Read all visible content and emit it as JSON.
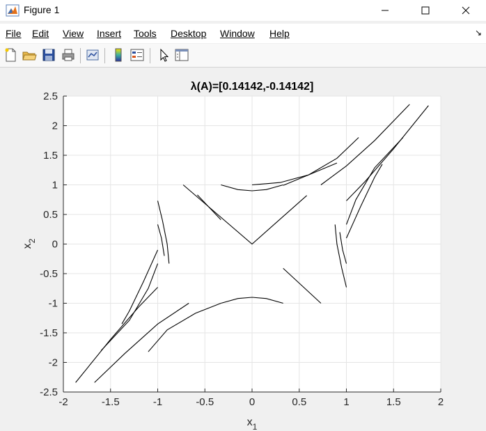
{
  "window": {
    "title": "Figure 1"
  },
  "menu": {
    "items": [
      {
        "label": "File"
      },
      {
        "label": "Edit"
      },
      {
        "label": "View"
      },
      {
        "label": "Insert"
      },
      {
        "label": "Tools"
      },
      {
        "label": "Desktop"
      },
      {
        "label": "Window"
      },
      {
        "label": "Help"
      }
    ]
  },
  "toolbar": {
    "icons": [
      "new-figure-icon",
      "open-file-icon",
      "save-icon",
      "print-icon",
      "link-plot-icon",
      "colorbar-icon",
      "legend-icon",
      "pointer-icon",
      "property-inspector-icon"
    ]
  },
  "colors": {
    "background": "#f0f0f0",
    "axes": "#ffffff",
    "line": "#000000",
    "grid": "#e5e5e5"
  },
  "chart_data": {
    "type": "line",
    "title": "λ(A)=[0.14142,-0.14142]",
    "xlabel": "x",
    "xlabel_sub": "1",
    "ylabel": "x",
    "ylabel_sub": "2",
    "xlim": [
      -2,
      2
    ],
    "ylim": [
      -2.5,
      2.5
    ],
    "xticks": [
      -2,
      -1.5,
      -1,
      -0.5,
      0,
      0.5,
      1,
      1.5,
      2
    ],
    "xticklabels": [
      "-2",
      "-1.5",
      "-1",
      "-0.5",
      "0",
      "0.5",
      "1",
      "1.5",
      "2"
    ],
    "yticks": [
      -2.5,
      -2,
      -1.5,
      -1,
      -0.5,
      0,
      0.5,
      1,
      1.5,
      2,
      2.5
    ],
    "yticklabels": [
      "-2.5",
      "-2",
      "-1.5",
      "-1",
      "-0.5",
      "0",
      "0.5",
      "1",
      "1.5",
      "2",
      "2.5"
    ],
    "grid": true,
    "series": [
      {
        "x": [
          -0.73,
          0.0,
          0.58
        ],
        "y": [
          1.0,
          0.0,
          0.82
        ]
      },
      {
        "x": [
          -0.58,
          -0.33
        ],
        "y": [
          0.83,
          0.41
        ]
      },
      {
        "x": [
          0.33,
          0.73
        ],
        "y": [
          -0.41,
          -1.0
        ]
      },
      {
        "x": [
          -0.33,
          -0.15,
          0.0,
          0.15,
          0.33
        ],
        "y": [
          1.0,
          0.92,
          0.9,
          0.92,
          1.0
        ]
      },
      {
        "x": [
          -0.33,
          -0.15,
          0.0,
          0.15,
          0.33
        ],
        "y": [
          -1.0,
          -0.92,
          -0.9,
          -0.92,
          -1.0
        ]
      },
      {
        "x": [
          0.0,
          0.3,
          0.6,
          0.9
        ],
        "y": [
          1.0,
          1.04,
          1.17,
          1.37
        ]
      },
      {
        "x": [
          0.33,
          0.6,
          0.9,
          1.13
        ],
        "y": [
          0.99,
          1.17,
          1.45,
          1.8
        ]
      },
      {
        "x": [
          0.73,
          1.0,
          1.3,
          1.67
        ],
        "y": [
          1.0,
          1.32,
          1.75,
          2.36
        ]
      },
      {
        "x": [
          -0.33,
          -0.6,
          -0.9,
          -1.1
        ],
        "y": [
          -1.0,
          -1.17,
          -1.45,
          -1.82
        ]
      },
      {
        "x": [
          -0.67,
          -1.0,
          -1.35,
          -1.67
        ],
        "y": [
          -1.0,
          -1.35,
          -1.85,
          -2.34
        ]
      },
      {
        "x": [
          1.0,
          1.2,
          1.5,
          1.87
        ],
        "y": [
          0.73,
          1.06,
          1.61,
          2.34
        ]
      },
      {
        "x": [
          -1.0,
          -1.2,
          -1.5,
          -1.87
        ],
        "y": [
          -0.73,
          -1.06,
          -1.61,
          -2.34
        ]
      },
      {
        "x": [
          1.0,
          1.1,
          1.3,
          1.6
        ],
        "y": [
          0.33,
          0.75,
          1.29,
          1.8
        ]
      },
      {
        "x": [
          1.0,
          1.15,
          1.3,
          1.38
        ],
        "y": [
          0.1,
          0.63,
          1.13,
          1.35
        ]
      },
      {
        "x": [
          -1.0,
          -1.1,
          -1.3,
          -1.6
        ],
        "y": [
          -0.33,
          -0.75,
          -1.29,
          -1.8
        ]
      },
      {
        "x": [
          -1.0,
          -1.15,
          -1.3,
          -1.38
        ],
        "y": [
          -0.1,
          -0.63,
          -1.13,
          -1.35
        ]
      },
      {
        "x": [
          0.88,
          0.9,
          0.95,
          1.0
        ],
        "y": [
          0.33,
          0.0,
          -0.4,
          -0.73
        ]
      },
      {
        "x": [
          0.93,
          0.96,
          1.0
        ],
        "y": [
          0.2,
          -0.1,
          -0.33
        ]
      },
      {
        "x": [
          -0.88,
          -0.9,
          -0.95,
          -1.0
        ],
        "y": [
          -0.33,
          0.0,
          0.4,
          0.73
        ]
      },
      {
        "x": [
          -0.93,
          -0.96,
          -1.0
        ],
        "y": [
          -0.2,
          0.1,
          0.33
        ]
      }
    ]
  }
}
